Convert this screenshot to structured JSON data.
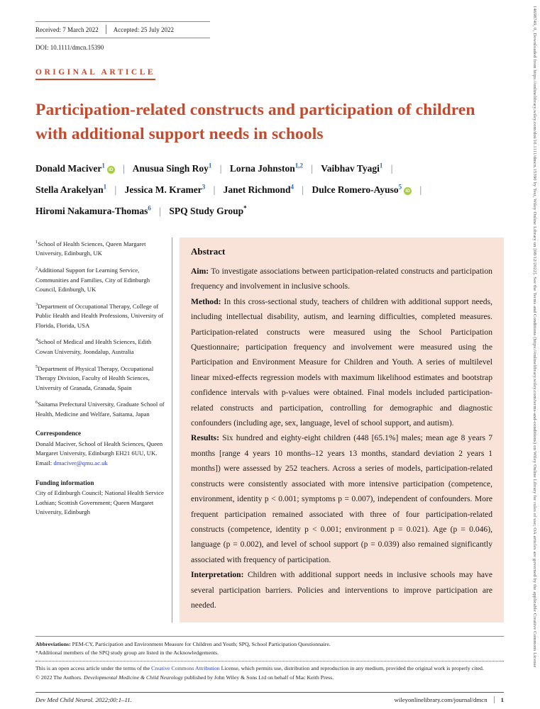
{
  "header": {
    "received": "Received: 7 March 2022",
    "accepted": "Accepted: 25 July 2022",
    "doi": "DOI: 10.1111/dmcn.15390",
    "article_type": "ORIGINAL ARTICLE"
  },
  "title": "Participation-related constructs and participation of children with additional support needs in schools",
  "authors_separator": "|",
  "orcid_glyph": "iD",
  "authors": [
    {
      "name": "Donald Maciver",
      "sup": "1"
    },
    {
      "name": "Anusua Singh Roy",
      "sup": "1"
    },
    {
      "name": "Lorna Johnston",
      "sup": "1,2"
    },
    {
      "name": "Vaibhav Tyagi",
      "sup": "1"
    },
    {
      "name": "Stella Arakelyan",
      "sup": "1"
    },
    {
      "name": "Jessica M. Kramer",
      "sup": "3"
    },
    {
      "name": "Janet Richmond",
      "sup": "4"
    },
    {
      "name": "Dulce Romero-Ayuso",
      "sup": "5"
    },
    {
      "name": "Hiromi Nakamura-Thomas",
      "sup": "6"
    },
    {
      "name": "SPQ Study Group",
      "sup": "*"
    }
  ],
  "affiliations": [
    {
      "sup": "1",
      "text": "School of Health Sciences, Queen Margaret University, Edinburgh, UK"
    },
    {
      "sup": "2",
      "text": "Additional Support for Learning Service, Communities and Families, City of Edinburgh Council, Edinburgh, UK"
    },
    {
      "sup": "3",
      "text": "Department of Occupational Therapy, College of Public Health and Health Professions, University of Florida, Florida, USA"
    },
    {
      "sup": "4",
      "text": "School of Medical and Health Sciences, Edith Cowan University, Joondalup, Australia"
    },
    {
      "sup": "5",
      "text": "Department of Physical Therapy, Occupational Therapy Division, Faculty of Health Sciences, University of Granada, Granada, Spain"
    },
    {
      "sup": "6",
      "text": "Saitama Prefectural University, Graduate School of Health, Medicine and Welfare, Saitama, Japan"
    }
  ],
  "correspondence": {
    "heading": "Correspondence",
    "text": "Donald Maciver, School of Health Sciences, Queen Margaret University, Edinburgh EH21 6UU, UK.",
    "email_label": "Email: ",
    "email": "dmaciver@qmu.ac.uk"
  },
  "funding": {
    "heading": "Funding information",
    "text": "City of Edinburgh Council; National Health Service Lothian; Scottish Government; Queen Margaret University, Edinburgh"
  },
  "abstract": {
    "heading": "Abstract",
    "paragraphs": [
      {
        "label": "Aim:",
        "text": "To investigate associations between participation-related constructs and participation frequency and involvement in inclusive schools."
      },
      {
        "label": "Method:",
        "text": "In this cross-sectional study, teachers of children with additional support needs, including intellectual disability, autism, and learning difficulties, completed measures. Participation-related constructs were measured using the School Participation Questionnaire; participation frequency and involvement were measured using the Participation and Environment Measure for Children and Youth. A series of multilevel linear mixed-effects regression models with maximum likelihood estimates and bootstrap confidence intervals with p-values were obtained. Final models included participation-related constructs and participation, controlling for demographic and diagnostic confounders (including age, sex, language, level of school support, and autism)."
      },
      {
        "label": "Results:",
        "text": "Six hundred and eighty-eight children (448 [65.1%] males; mean age 8 years 7 months [range 4 years 10 months–12 years 13 months, standard deviation 2 years 1 months]) were assessed by 252 teachers. Across a series of models, participation-related constructs were consistently associated with more intensive participation (competence, environment, identity p < 0.001; symptoms p = 0.007), independent of confounders. More frequent participation remained associated with three of four participation-related constructs (competence, identity p < 0.001; environment p = 0.021). Age (p = 0.046), language (p = 0.002), and level of school support (p = 0.039) also remained significantly associated with frequency of participation."
      },
      {
        "label": "Interpretation:",
        "text": "Children with additional support needs in inclusive schools may have several participation barriers. Policies and interventions to improve participation are needed."
      }
    ]
  },
  "notes": {
    "abbreviations_label": "Abbreviations:",
    "abbreviations_text": " PEM-CY, Participation and Environment Measure for Children and Youth; SPQ, School Participation Questionnaire.",
    "study_group_note": "*Additional members of the SPQ study group are listed in the Acknowledgements.",
    "open_access_pre": "This is an open access article under the terms of the ",
    "open_access_link": "Creative Commons Attribution",
    "open_access_post": " License, which permits use, distribution and reproduction in any medium, provided the original work is properly cited.",
    "copyright_pre": "© 2022 The Authors. ",
    "copyright_journal": "Developmental Medicine & Child Neurology",
    "copyright_post": " published by John Wiley & Sons Ltd on behalf of Mac Keith Press."
  },
  "footer": {
    "citation": "Dev Med Child Neurol. 2022;00:1–11.",
    "url": "wileyonlinelibrary.com/journal/dmcn",
    "page_number": "1"
  },
  "sidebar_text": "14698749, 0, Downloaded from https://onlinelibrary.wiley.com/doi/10.1111/dmcn.15390 by Test, Wiley Online Library on [08/12/2022]. See the Terms and Conditions (https://onlinelibrary.wiley.com/terms-and-conditions) on Wiley Online Library for rules of use; OA articles are governed by the applicable Creative Commons License"
}
